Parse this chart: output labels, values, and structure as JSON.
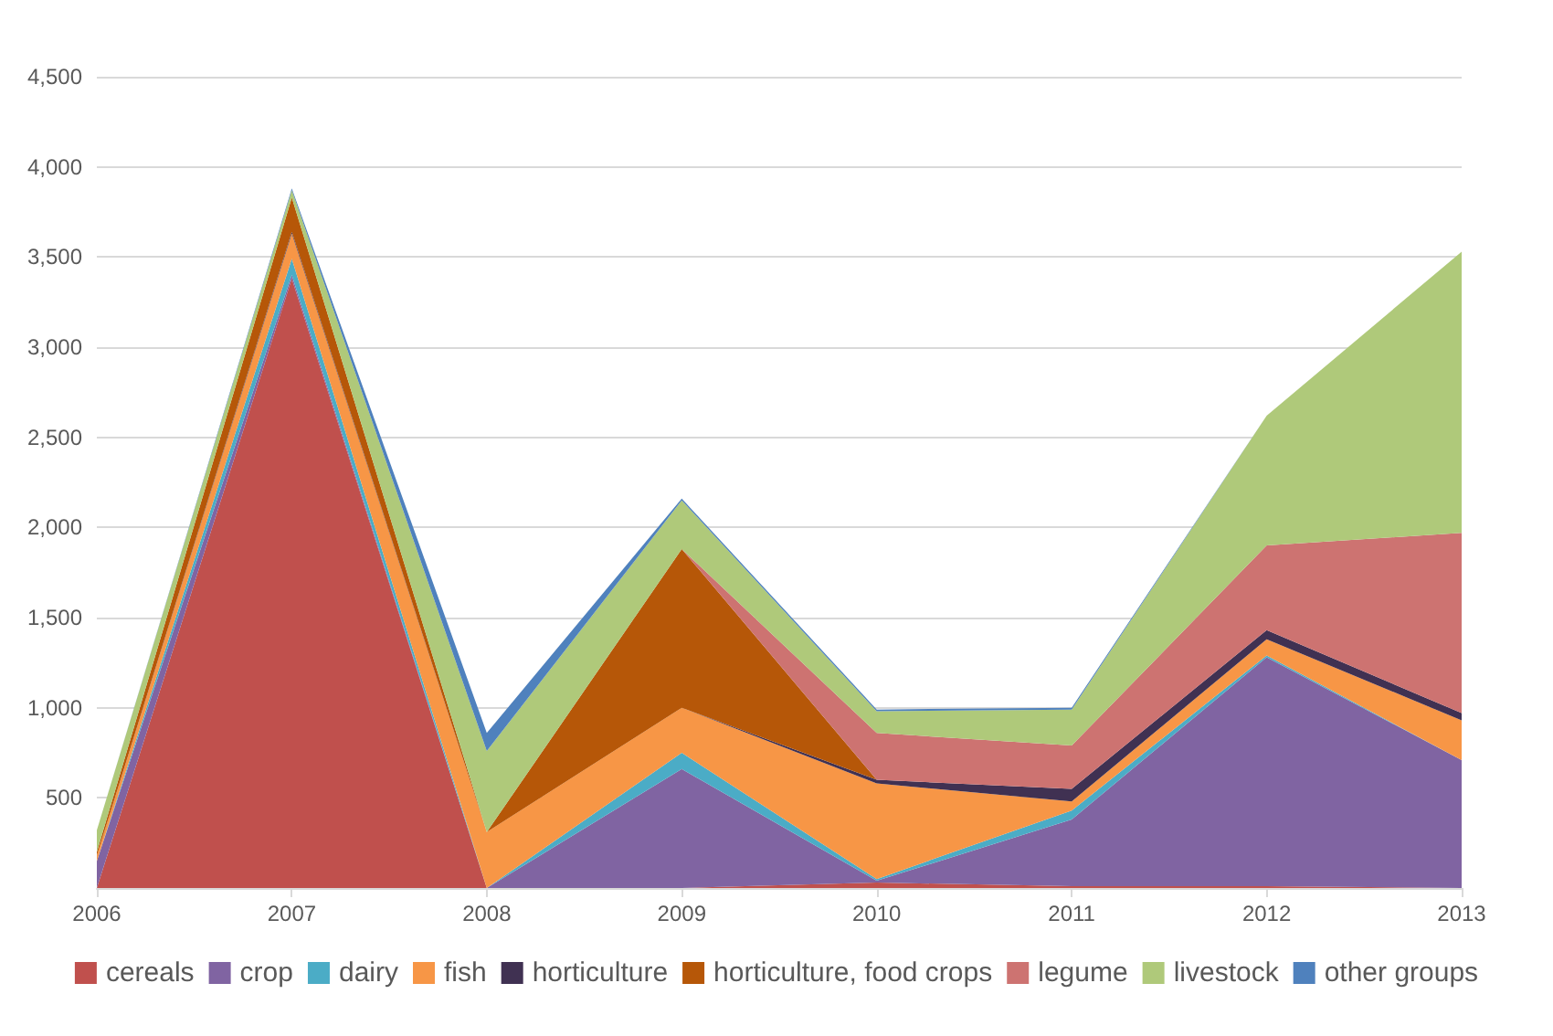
{
  "chart_data": {
    "type": "area",
    "stacked": true,
    "categories": [
      "2006",
      "2007",
      "2008",
      "2009",
      "2010",
      "2011",
      "2012",
      "2013"
    ],
    "series": [
      {
        "name": "cereals",
        "color": "#c0504d",
        "values": [
          0,
          3380,
          0,
          0,
          30,
          10,
          10,
          0
        ]
      },
      {
        "name": "crop",
        "color": "#8064a2",
        "values": [
          150,
          20,
          0,
          660,
          10,
          370,
          1270,
          710
        ]
      },
      {
        "name": "dairy",
        "color": "#4bacc6",
        "values": [
          0,
          90,
          0,
          90,
          10,
          50,
          10,
          0
        ]
      },
      {
        "name": "fish",
        "color": "#f79646",
        "values": [
          30,
          140,
          310,
          250,
          530,
          50,
          90,
          220
        ]
      },
      {
        "name": "horticulture",
        "color": "#403152",
        "values": [
          0,
          10,
          0,
          0,
          20,
          70,
          50,
          40
        ]
      },
      {
        "name": "horticulture, food crops",
        "color": "#b65708",
        "values": [
          20,
          190,
          0,
          880,
          0,
          0,
          0,
          0
        ]
      },
      {
        "name": "legume",
        "color": "#cd7371",
        "values": [
          0,
          0,
          0,
          0,
          260,
          240,
          470,
          1000
        ]
      },
      {
        "name": "livestock",
        "color": "#afc97a",
        "values": [
          120,
          40,
          450,
          270,
          120,
          200,
          720,
          1560
        ]
      },
      {
        "name": "other groups",
        "color": "#4f81bd",
        "values": [
          0,
          10,
          100,
          10,
          10,
          10,
          0,
          0
        ]
      }
    ],
    "ylim": [
      0,
      4500
    ],
    "yticks": [
      500,
      {
        "value": 1000,
        "label": "1,000"
      },
      {
        "value": 1500,
        "label": "1,500"
      },
      {
        "value": 2000,
        "label": "2,000"
      },
      {
        "value": 2500,
        "label": "2,500"
      },
      {
        "value": 3000,
        "label": "3,000"
      },
      {
        "value": 3500,
        "label": "3,500"
      },
      {
        "value": 4000,
        "label": "4,000"
      },
      {
        "value": 4500,
        "label": "4,500"
      }
    ],
    "grid": "y",
    "legend": "bottom"
  }
}
